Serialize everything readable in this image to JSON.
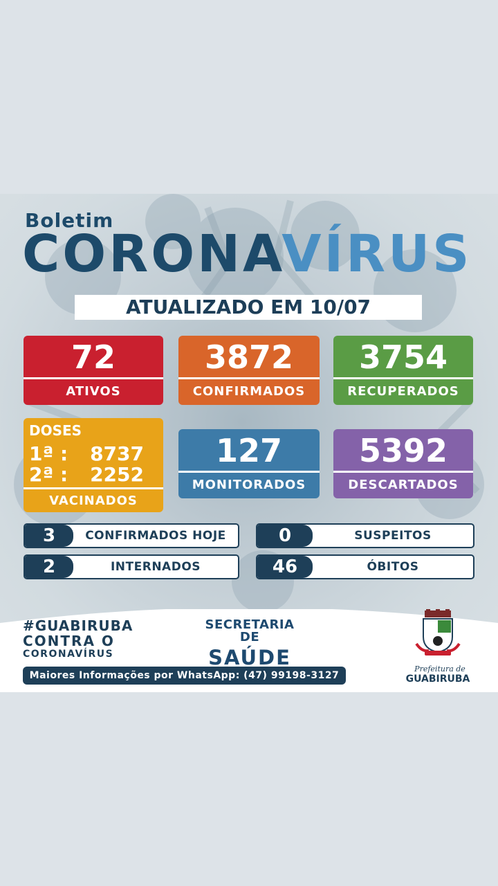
{
  "header": {
    "boletim": "Boletim",
    "title_part1": "CORONA",
    "title_part2": "VÍRUS",
    "updated": "ATUALIZADO EM 10/07"
  },
  "cards": {
    "ativos": {
      "value": "72",
      "label": "ATIVOS"
    },
    "confirmados": {
      "value": "3872",
      "label": "CONFIRMADOS"
    },
    "recuperados": {
      "value": "3754",
      "label": "RECUPERADOS"
    },
    "monitorados": {
      "value": "127",
      "label": "MONITORADOS"
    },
    "descartados": {
      "value": "5392",
      "label": "DESCARTADOS"
    }
  },
  "doses": {
    "title": "DOSES",
    "first_label": "1ª :",
    "first_value": "8737",
    "second_label": "2ª :",
    "second_value": "2252",
    "label": "VACINADOS"
  },
  "pills": {
    "confirmados_hoje": {
      "value": "3",
      "label": "CONFIRMADOS HOJE"
    },
    "suspeitos": {
      "value": "0",
      "label": "SUSPEITOS"
    },
    "internados": {
      "value": "2",
      "label": "INTERNADOS"
    },
    "obitos": {
      "value": "46",
      "label": "ÓBITOS"
    }
  },
  "footer": {
    "hashtag_line1": "#GUABIRUBA",
    "hashtag_line2": "CONTRA O",
    "hashtag_line3": "CORONAVÍRUS",
    "secretaria_line1": "SECRETARIA DE",
    "secretaria_line2": "SAÚDE",
    "info": "Maiores Informações por WhatsApp: (47) 99198-3127",
    "prefeitura_small": "Prefeitura de",
    "prefeitura_name": "GUABIRUBA",
    "crest_icon": "city-crest-icon"
  },
  "colors": {
    "dark_blue": "#1e3f58",
    "light_blue": "#4a8fc3",
    "red": "#c9202f",
    "orange": "#d9652a",
    "green": "#5a9c45",
    "blue": "#3d7ba8",
    "purple": "#8462a9",
    "yellow": "#e8a319"
  }
}
